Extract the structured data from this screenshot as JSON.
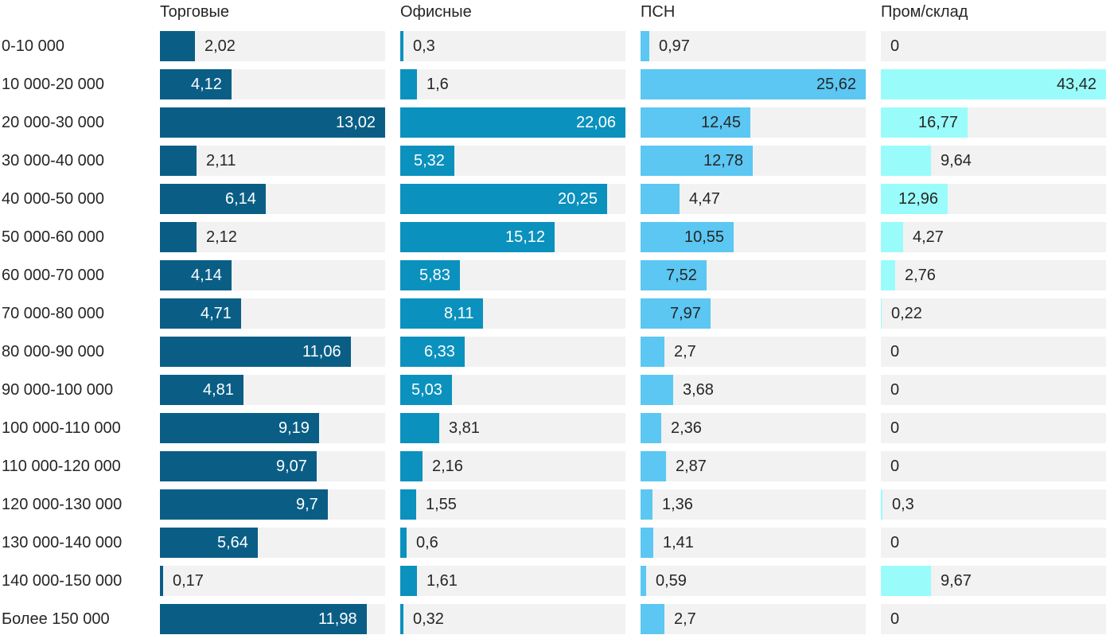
{
  "chart_data": {
    "type": "bar",
    "orientation": "horizontal",
    "title": "",
    "xlabel": "",
    "ylabel": "",
    "legend_position": "column-headers-top",
    "grid": false,
    "scale": "independent-per-column-max",
    "decimal_separator": ",",
    "categories": [
      "0-10 000",
      "10 000-20 000",
      "20 000-30 000",
      "30 000-40 000",
      "40 000-50 000",
      "50 000-60 000",
      "60 000-70 000",
      "70 000-80 000",
      "80 000-90 000",
      "90 000-100 000",
      "100 000-110 000",
      "110 000-120 000",
      "120 000-130 000",
      "130 000-140 000",
      "140 000-150 000",
      "Более 150 000"
    ],
    "series": [
      {
        "name": "Торговые",
        "color": "#0A5E86",
        "inside_label_color": "#FFFFFF",
        "values": [
          "2,02",
          "4,12",
          "13,02",
          "2,11",
          "6,14",
          "2,12",
          "4,14",
          "4,71",
          "11,06",
          "4,81",
          "9,19",
          "9,07",
          "9,7",
          "5,64",
          "0,17",
          "11,98"
        ]
      },
      {
        "name": "Офисные",
        "color": "#0B91BD",
        "inside_label_color": "#FFFFFF",
        "values": [
          "0,3",
          "1,6",
          "22,06",
          "5,32",
          "20,25",
          "15,12",
          "5,83",
          "8,11",
          "6,33",
          "5,03",
          "3,81",
          "2,16",
          "1,55",
          "0,6",
          "1,61",
          "0,32"
        ]
      },
      {
        "name": "ПСН",
        "color": "#5BC7F2",
        "inside_label_color": "#262626",
        "values": [
          "0,97",
          "25,62",
          "12,45",
          "12,78",
          "4,47",
          "10,55",
          "7,52",
          "7,97",
          "2,7",
          "3,68",
          "2,36",
          "2,87",
          "1,36",
          "1,41",
          "0,59",
          "2,7"
        ]
      },
      {
        "name": "Пром/склад",
        "color": "#9AFCFA",
        "inside_label_color": "#262626",
        "values": [
          "0",
          "43,42",
          "16,77",
          "9,64",
          "12,96",
          "4,27",
          "2,76",
          "0,22",
          "0",
          "0",
          "0",
          "0",
          "0,3",
          "0",
          "9,67",
          "0"
        ]
      }
    ],
    "colors": {
      "track_background": "#F2F2F2",
      "outside_label_color": "#262626",
      "header_text_color": "#262626",
      "row_label_color": "#262626",
      "page_background": "#FFFFFF"
    }
  }
}
